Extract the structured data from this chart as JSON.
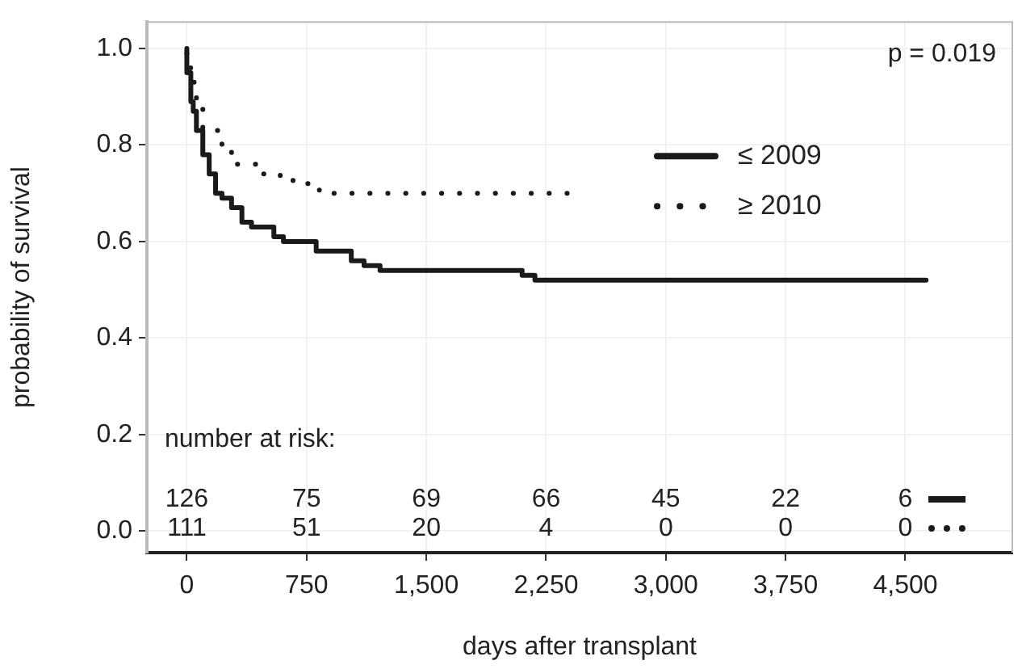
{
  "chart_data": {
    "type": "step",
    "xlabel": "days after transplant",
    "ylabel": "probability of survival",
    "xlim": [
      -250,
      5170
    ],
    "ylim": [
      -0.045,
      1.055
    ],
    "xticks": [
      0,
      750,
      {
        "value": 1500,
        "label": "1,500"
      },
      {
        "value": 2250,
        "label": "2,250"
      },
      {
        "value": 3000,
        "label": "3,000"
      },
      {
        "value": 3750,
        "label": "3,750"
      },
      {
        "value": 4500,
        "label": "4,500"
      }
    ],
    "yticks": [
      {
        "value": 0,
        "label": "0.0"
      },
      {
        "value": 0.2,
        "label": "0.2"
      },
      {
        "value": 0.4,
        "label": "0.4"
      },
      {
        "value": 0.6,
        "label": "0.6"
      },
      {
        "value": 0.8,
        "label": "0.8"
      },
      {
        "value": 1,
        "label": "1.0"
      }
    ],
    "grid": true,
    "legend": "top right",
    "marker": "none",
    "series": [
      {
        "name": "≤ 2009",
        "color": "#1a1a1a",
        "line_style": "solid",
        "x": [
          0,
          25,
          40,
          60,
          100,
          140,
          180,
          220,
          280,
          345,
          405,
          545,
          605,
          810,
          1030,
          1110,
          1210,
          1740,
          2100,
          2180,
          2300,
          4630
        ],
        "values": [
          1.0,
          0.95,
          0.89,
          0.87,
          0.83,
          0.78,
          0.74,
          0.7,
          0.69,
          0.67,
          0.64,
          0.63,
          0.61,
          0.6,
          0.58,
          0.56,
          0.55,
          0.54,
          0.54,
          0.53,
          0.52,
          0.52
        ]
      },
      {
        "name": "≥ 2010",
        "color": "#1a1a1a",
        "line_style": "dotted",
        "x": [
          0,
          40,
          60,
          100,
          220,
          280,
          445,
          585,
          665,
          830,
          910,
          2430
        ],
        "values": [
          1.0,
          0.96,
          0.93,
          0.89,
          0.83,
          0.8,
          0.76,
          0.74,
          0.73,
          0.72,
          0.7,
          0.7
        ]
      }
    ],
    "annotations": [
      "p = 0.019",
      "number at risk:",
      "126",
      "75",
      "69",
      "66",
      "45",
      "22",
      "6",
      "111",
      "51",
      "20",
      "4",
      "0",
      "0",
      "0"
    ]
  }
}
